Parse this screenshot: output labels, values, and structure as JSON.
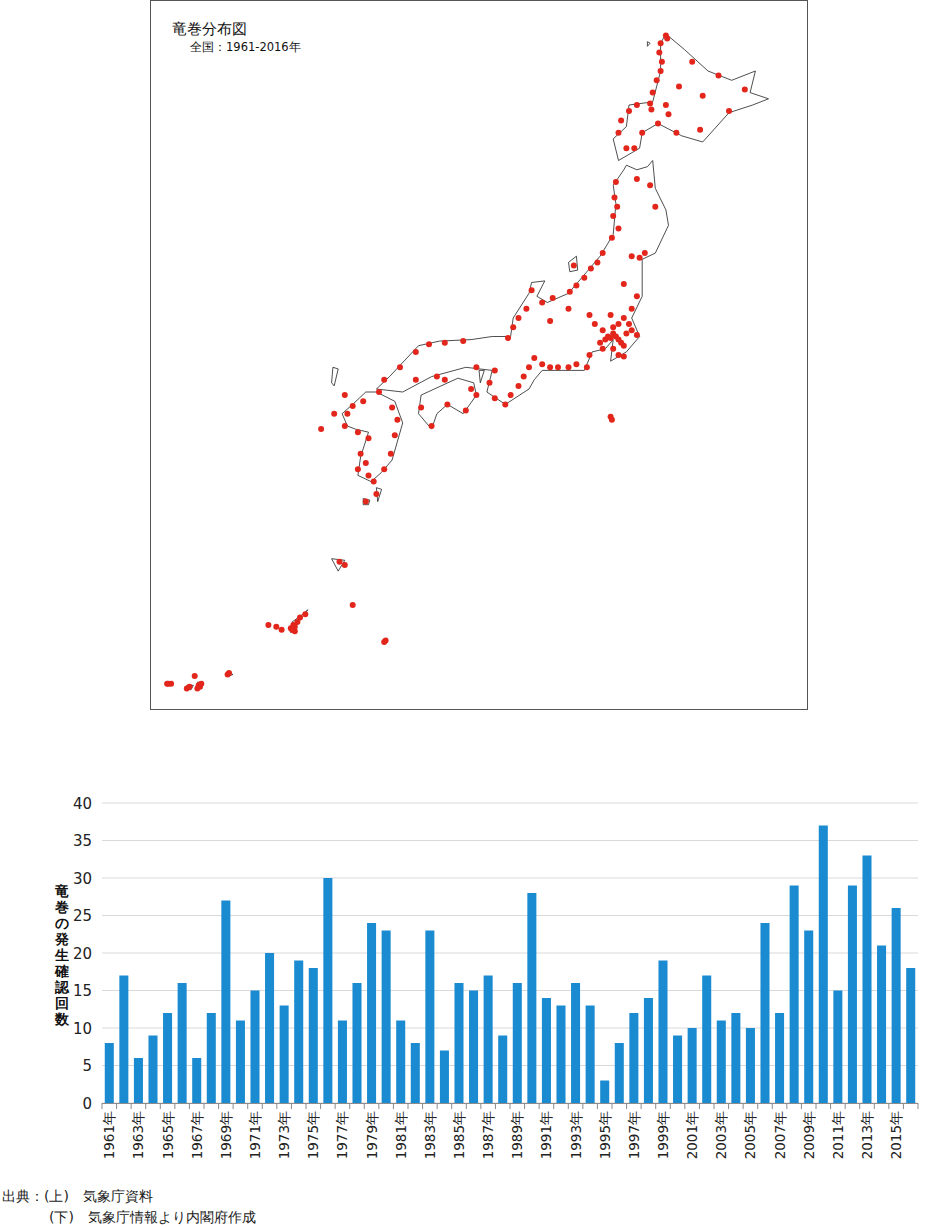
{
  "chart_data": [
    {
      "type": "map",
      "title": "竜巻分布図",
      "subtitle": "全国：1961-2016年",
      "xlim": [
        122.3,
        147.3
      ],
      "ylim": [
        23.6,
        46.6
      ],
      "tick_labels": false,
      "color": "#e3261c",
      "marker": "circle",
      "x": [
        141.9,
        141.95,
        141.7,
        141.65,
        141.75,
        141.7,
        141.55,
        141.4,
        141.3,
        140.8,
        140.5,
        140.2,
        140.1,
        140.4,
        140.7,
        141.0,
        141.6,
        142.3,
        143.2,
        144.3,
        143.9,
        142.9,
        142.4,
        141.9,
        141.35,
        142.0,
        143.3,
        144.9,
        140.0,
        139.95,
        140.05,
        139.9,
        140.1,
        139.85,
        139.5,
        139.3,
        139.05,
        138.8,
        138.5,
        138.25,
        138.4,
        140.8,
        141.3,
        141.5,
        140.9,
        141.1,
        140.6,
        140.3,
        140.8,
        137.6,
        137.2,
        136.8,
        136.6,
        136.3,
        136.1,
        135.9,
        137.5,
        138.2,
        139.0,
        139.6,
        139.7,
        139.8,
        139.9,
        140.0,
        140.1,
        140.2,
        140.3,
        140.4,
        140.6,
        140.5,
        140.3,
        140.1,
        139.9,
        139.5,
        139.4,
        139.5,
        139.9,
        140.1,
        140.3,
        140.8,
        139.2,
        139.8,
        140.6,
        139.0,
        138.9,
        138.5,
        138.2,
        137.8,
        137.5,
        137.2,
        136.9,
        136.7,
        136.5,
        136.3,
        136.0,
        135.8,
        135.4,
        135.2,
        135.4,
        134.7,
        139.8,
        139.85,
        134.2,
        133.5,
        132.9,
        132.4,
        131.8,
        131.2,
        133.2,
        132.4,
        134.5,
        134.7,
        134.3,
        133.6,
        133.0,
        132.6,
        133.5,
        130.4,
        130.0,
        129.8,
        129.7,
        130.2,
        130.6,
        130.3,
        130.2,
        130.6,
        130.8,
        131.2,
        131.45,
        131.6,
        131.7,
        131.5,
        131.0,
        130.5,
        128.8,
        129.3,
        129.7,
        130.9,
        130.5,
        129.5,
        129.7,
        130.0,
        127.7,
        127.8,
        127.75,
        127.9,
        127.65,
        127.8,
        128.0,
        128.2,
        127.3,
        127.1,
        126.8,
        125.3,
        125.25,
        124.2,
        124.15,
        124.1,
        124.25,
        123.8,
        123.7,
        123.0,
        123.1,
        122.95,
        124.0,
        131.25,
        131.2
      ],
      "y": [
        45.45,
        45.35,
        45.2,
        44.9,
        44.6,
        44.3,
        44.0,
        43.6,
        43.25,
        43.2,
        43.0,
        42.7,
        42.3,
        41.8,
        41.8,
        42.3,
        42.6,
        42.3,
        42.4,
        43.0,
        44.15,
        44.6,
        43.8,
        43.2,
        43.05,
        42.9,
        43.5,
        43.7,
        40.7,
        40.2,
        39.9,
        39.6,
        39.2,
        38.9,
        38.4,
        38.1,
        37.9,
        37.6,
        37.35,
        37.15,
        38.0,
        40.8,
        40.6,
        39.9,
        38.25,
        38.4,
        38.3,
        37.4,
        37.0,
        36.95,
        36.8,
        37.2,
        36.6,
        36.3,
        36.0,
        35.65,
        36.2,
        36.6,
        36.4,
        35.6,
        35.7,
        35.65,
        35.8,
        35.7,
        35.6,
        35.5,
        35.4,
        35.8,
        35.9,
        36.1,
        36.3,
        36.1,
        36.0,
        35.9,
        35.5,
        35.3,
        35.3,
        35.1,
        35.05,
        35.75,
        36.1,
        36.4,
        36.6,
        35.1,
        34.7,
        34.8,
        34.7,
        34.7,
        34.7,
        34.8,
        35.0,
        34.7,
        34.4,
        34.1,
        33.8,
        33.5,
        33.7,
        34.2,
        34.6,
        34.7,
        33.1,
        33.0,
        35.55,
        35.5,
        35.45,
        35.2,
        34.7,
        34.3,
        34.4,
        34.3,
        34.0,
        33.8,
        33.3,
        33.5,
        32.8,
        33.4,
        34.3,
        33.6,
        33.45,
        33.2,
        32.8,
        32.6,
        32.4,
        31.9,
        31.4,
        31.2,
        31.0,
        31.4,
        31.9,
        32.5,
        33.0,
        33.4,
        33.9,
        31.6,
        32.7,
        33.2,
        33.8,
        30.6,
        30.35,
        28.4,
        28.3,
        27.0,
        26.2,
        26.3,
        26.35,
        26.45,
        26.25,
        26.15,
        26.6,
        26.7,
        26.2,
        26.3,
        26.35,
        24.8,
        24.75,
        24.35,
        24.4,
        24.3,
        24.45,
        24.35,
        24.3,
        24.45,
        24.45,
        24.45,
        24.7,
        25.85,
        25.8
      ]
    },
    {
      "type": "bar",
      "y_label": "竜巻の発生確認回数",
      "categories": [
        "1961年",
        null,
        "1963年",
        null,
        "1965年",
        null,
        "1967年",
        null,
        "1969年",
        null,
        "1971年",
        null,
        "1973年",
        null,
        "1975年",
        null,
        "1977年",
        null,
        "1979年",
        null,
        "1981年",
        null,
        "1983年",
        null,
        "1985年",
        null,
        "1987年",
        null,
        "1989年",
        null,
        "1991年",
        null,
        "1993年",
        null,
        "1995年",
        null,
        "1997年",
        null,
        "1999年",
        null,
        "2001年",
        null,
        "2003年",
        null,
        "2005年",
        null,
        "2007年",
        null,
        "2009年",
        null,
        "2011年",
        null,
        "2013年",
        null,
        "2015年",
        null
      ],
      "values": [
        8,
        17,
        6,
        9,
        12,
        16,
        6,
        12,
        27,
        11,
        15,
        20,
        13,
        19,
        18,
        30,
        11,
        16,
        24,
        23,
        11,
        8,
        23,
        7,
        16,
        15,
        17,
        9,
        16,
        28,
        14,
        13,
        16,
        13,
        3,
        8,
        12,
        14,
        19,
        9,
        10,
        17,
        11,
        12,
        10,
        24,
        12,
        29,
        23,
        37,
        15,
        29,
        33,
        21,
        26,
        18
      ],
      "color": "#1a8bd0",
      "ylim": [
        0,
        40
      ],
      "yticks": [
        0,
        5,
        10,
        15,
        20,
        25,
        30,
        35,
        40
      ],
      "grid": true
    }
  ],
  "source": [
    "出典：(上)　気象庁資料",
    "(下)　気象庁情報より内閣府作成"
  ]
}
